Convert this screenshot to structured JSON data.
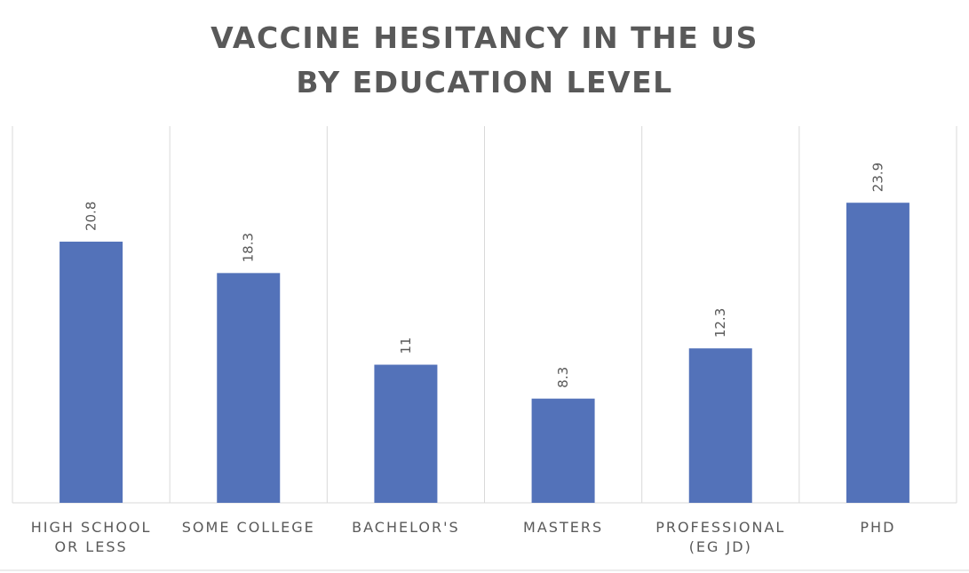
{
  "chart_data": {
    "type": "bar",
    "title_lines": [
      "VACCINE HESITANCY IN THE US",
      "BY EDUCATION LEVEL"
    ],
    "categories": [
      [
        "HIGH SCHOOL",
        "OR LESS"
      ],
      [
        "SOME COLLEGE"
      ],
      [
        "BACHELOR'S"
      ],
      [
        "MASTERS"
      ],
      [
        "PROFESSIONAL",
        "(EG JD)"
      ],
      [
        "PHD"
      ]
    ],
    "values": [
      20.8,
      18.3,
      11,
      8.3,
      12.3,
      23.9
    ],
    "data_labels": [
      "20.8",
      "18.3",
      "11",
      "8.3",
      "12.3",
      "23.9"
    ],
    "ylim": [
      0,
      30
    ],
    "grid": "vertical category separators",
    "legend": "none",
    "colors": {
      "bar": "#5372B9",
      "grid": "#D9D9D9",
      "text": "#595959"
    }
  }
}
